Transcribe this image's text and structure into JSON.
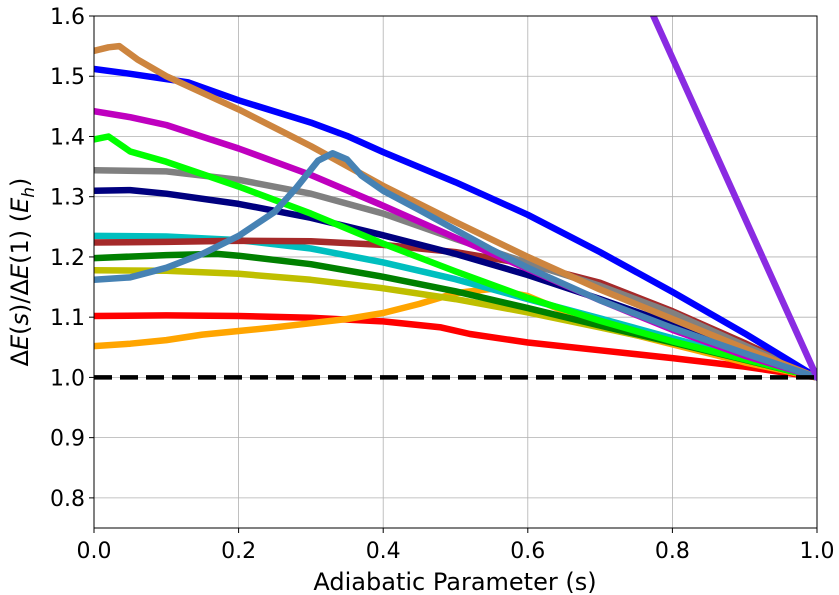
{
  "chart_data": {
    "type": "line",
    "title": "",
    "xlabel": "Adiabatic Parameter (s)",
    "ylabel": "ΔE(s)/ΔE(1) (E_h)",
    "ylabel_parts": {
      "a": "Δ",
      "b": "E",
      "c": "(",
      "d": "s",
      "e": ")/Δ",
      "f": "E",
      "g": "(1) (",
      "h": "E",
      "sub": "h",
      "i": ")"
    },
    "xlim": [
      0.0,
      1.0
    ],
    "ylim": [
      0.75,
      1.6
    ],
    "xticks": [
      {
        "v": 0.0,
        "label": "0.0"
      },
      {
        "v": 0.2,
        "label": "0.2"
      },
      {
        "v": 0.4,
        "label": "0.4"
      },
      {
        "v": 0.6,
        "label": "0.6"
      },
      {
        "v": 0.8,
        "label": "0.8"
      },
      {
        "v": 1.0,
        "label": "1.0"
      }
    ],
    "yticks": [
      {
        "v": 0.8,
        "label": "0.8"
      },
      {
        "v": 0.9,
        "label": "0.9"
      },
      {
        "v": 1.0,
        "label": "1.0"
      },
      {
        "v": 1.1,
        "label": "1.1"
      },
      {
        "v": 1.2,
        "label": "1.2"
      },
      {
        "v": 1.3,
        "label": "1.3"
      },
      {
        "v": 1.4,
        "label": "1.4"
      },
      {
        "v": 1.5,
        "label": "1.5"
      },
      {
        "v": 1.6,
        "label": "1.6"
      }
    ],
    "grid": true,
    "reference_line": {
      "name": "reference-dashed-line",
      "y": 1.0,
      "color": "#000000",
      "dash": true
    },
    "series": [
      {
        "name": "red",
        "color": "#ff0000",
        "x": [
          0,
          0.1,
          0.2,
          0.3,
          0.4,
          0.48,
          0.52,
          0.6,
          0.7,
          0.8,
          0.9,
          1.0
        ],
        "y": [
          1.102,
          1.103,
          1.102,
          1.099,
          1.093,
          1.083,
          1.072,
          1.058,
          1.045,
          1.032,
          1.018,
          1.0
        ]
      },
      {
        "name": "orange",
        "color": "#ffa500",
        "x": [
          0,
          0.05,
          0.1,
          0.15,
          0.2,
          0.25,
          0.3,
          0.35,
          0.4,
          0.45,
          0.5,
          0.55,
          0.6,
          0.65,
          0.7,
          0.8,
          0.9,
          1.0
        ],
        "y": [
          1.052,
          1.056,
          1.062,
          1.071,
          1.077,
          1.083,
          1.09,
          1.097,
          1.107,
          1.122,
          1.14,
          1.147,
          1.135,
          1.11,
          1.085,
          1.055,
          1.025,
          1.0
        ]
      },
      {
        "name": "yellow-green",
        "color": "#bfbf00",
        "x": [
          0,
          0.1,
          0.2,
          0.3,
          0.4,
          0.5,
          0.6,
          0.7,
          0.8,
          0.9,
          1.0
        ],
        "y": [
          1.178,
          1.177,
          1.172,
          1.162,
          1.148,
          1.13,
          1.108,
          1.083,
          1.057,
          1.029,
          1.0
        ]
      },
      {
        "name": "green",
        "color": "#008000",
        "x": [
          0,
          0.1,
          0.17,
          0.2,
          0.3,
          0.4,
          0.5,
          0.6,
          0.7,
          0.8,
          0.9,
          1.0
        ],
        "y": [
          1.198,
          1.203,
          1.205,
          1.202,
          1.188,
          1.167,
          1.143,
          1.115,
          1.086,
          1.058,
          1.029,
          1.0
        ]
      },
      {
        "name": "cyan",
        "color": "#00bfbf",
        "x": [
          0,
          0.1,
          0.2,
          0.3,
          0.4,
          0.5,
          0.6,
          0.7,
          0.8,
          0.9,
          1.0
        ],
        "y": [
          1.235,
          1.234,
          1.228,
          1.214,
          1.191,
          1.163,
          1.13,
          1.098,
          1.065,
          1.033,
          1.0
        ]
      },
      {
        "name": "brown",
        "color": "#a52a2a",
        "x": [
          0,
          0.1,
          0.2,
          0.3,
          0.4,
          0.5,
          0.6,
          0.7,
          0.8,
          0.9,
          1.0
        ],
        "y": [
          1.224,
          1.225,
          1.227,
          1.226,
          1.22,
          1.208,
          1.188,
          1.157,
          1.11,
          1.057,
          1.0
        ]
      },
      {
        "name": "navy",
        "color": "#00007f",
        "x": [
          0,
          0.05,
          0.1,
          0.2,
          0.3,
          0.4,
          0.5,
          0.6,
          0.7,
          0.8,
          0.9,
          1.0
        ],
        "y": [
          1.31,
          1.311,
          1.305,
          1.288,
          1.265,
          1.236,
          1.205,
          1.17,
          1.13,
          1.088,
          1.044,
          1.0
        ]
      },
      {
        "name": "gray",
        "color": "#808080",
        "x": [
          0,
          0.1,
          0.2,
          0.3,
          0.4,
          0.5,
          0.6,
          0.7,
          0.8,
          0.9,
          1.0
        ],
        "y": [
          1.344,
          1.342,
          1.328,
          1.305,
          1.272,
          1.23,
          1.19,
          1.152,
          1.107,
          1.053,
          1.0
        ]
      },
      {
        "name": "lime",
        "color": "#00ff00",
        "x": [
          0,
          0.02,
          0.05,
          0.1,
          0.2,
          0.3,
          0.4,
          0.5,
          0.6,
          0.7,
          0.8,
          0.9,
          1.0
        ],
        "y": [
          1.395,
          1.4,
          1.375,
          1.358,
          1.317,
          1.272,
          1.222,
          1.176,
          1.132,
          1.094,
          1.06,
          1.03,
          1.0
        ]
      },
      {
        "name": "magenta",
        "color": "#bf00bf",
        "x": [
          0,
          0.05,
          0.1,
          0.2,
          0.3,
          0.4,
          0.5,
          0.6,
          0.7,
          0.8,
          0.9,
          1.0
        ],
        "y": [
          1.442,
          1.432,
          1.419,
          1.38,
          1.336,
          1.285,
          1.232,
          1.18,
          1.128,
          1.079,
          1.036,
          1.0
        ]
      },
      {
        "name": "blue",
        "color": "#0000ff",
        "x": [
          0,
          0.05,
          0.13,
          0.2,
          0.3,
          0.35,
          0.4,
          0.5,
          0.6,
          0.7,
          0.8,
          0.9,
          1.0
        ],
        "y": [
          1.512,
          1.504,
          1.49,
          1.46,
          1.423,
          1.401,
          1.374,
          1.324,
          1.27,
          1.208,
          1.142,
          1.073,
          1.0
        ]
      },
      {
        "name": "peru",
        "color": "#cd853f",
        "x": [
          0,
          0.02,
          0.035,
          0.06,
          0.1,
          0.2,
          0.3,
          0.4,
          0.5,
          0.6,
          0.7,
          0.8,
          0.9,
          1.0
        ],
        "y": [
          1.542,
          1.548,
          1.55,
          1.528,
          1.5,
          1.445,
          1.384,
          1.318,
          1.258,
          1.2,
          1.146,
          1.097,
          1.048,
          1.0
        ]
      },
      {
        "name": "steel-blue",
        "color": "#4682b4",
        "x": [
          0,
          0.05,
          0.1,
          0.15,
          0.2,
          0.25,
          0.28,
          0.31,
          0.33,
          0.35,
          0.37,
          0.4,
          0.45,
          0.5,
          0.55,
          0.6,
          0.7,
          0.8,
          0.9,
          1.0
        ],
        "y": [
          1.162,
          1.166,
          1.182,
          1.205,
          1.235,
          1.275,
          1.315,
          1.36,
          1.372,
          1.362,
          1.335,
          1.31,
          1.278,
          1.245,
          1.212,
          1.182,
          1.128,
          1.082,
          1.04,
          1.0
        ]
      },
      {
        "name": "purple",
        "color": "#8a2be2",
        "x": [
          0.77,
          1.0
        ],
        "y": [
          1.61,
          1.0
        ]
      }
    ]
  }
}
